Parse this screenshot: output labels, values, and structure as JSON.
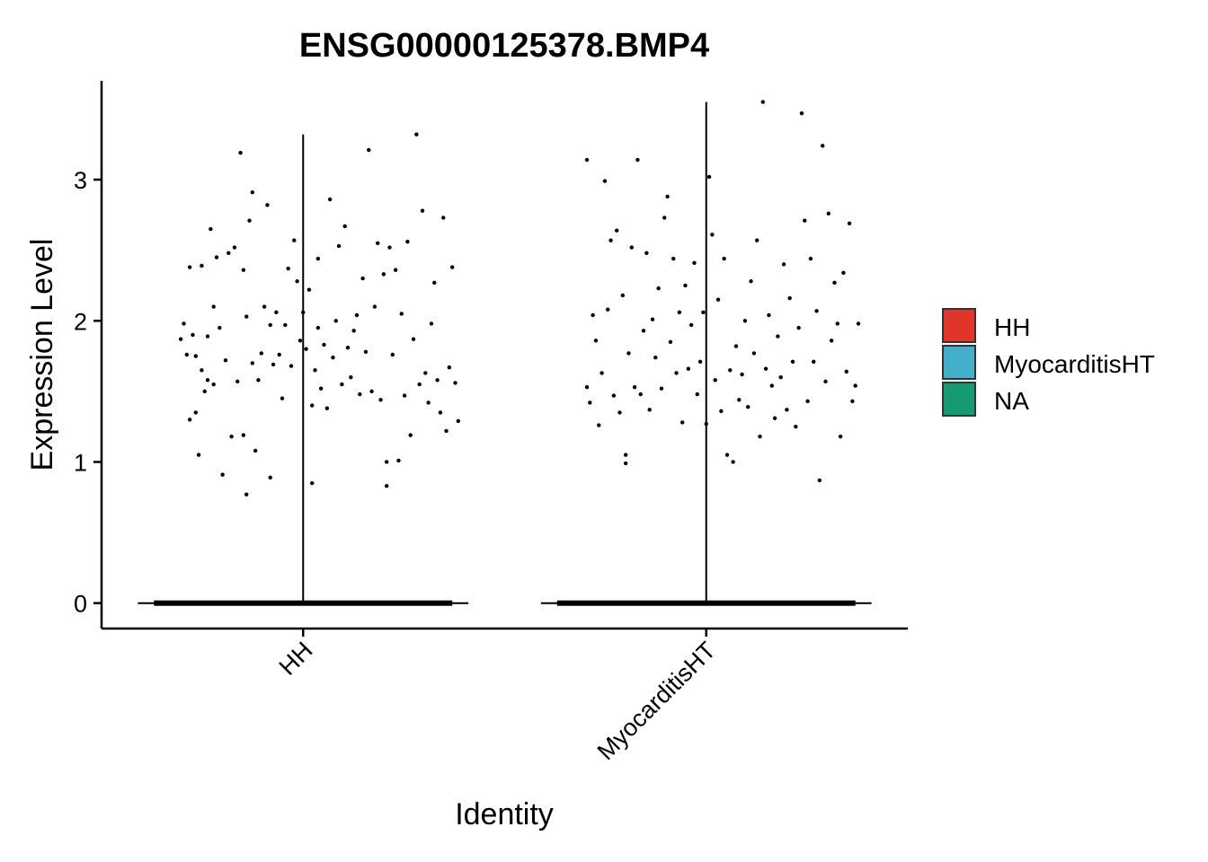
{
  "chart_data": {
    "type": "violin",
    "title": "ENSG00000125378.BMP4",
    "xlabel": "Identity",
    "ylabel": "Expression Level",
    "categories": [
      "HH",
      "MyocarditisHT"
    ],
    "ylim": [
      -0.18,
      3.7
    ],
    "yticks": [
      0,
      1,
      2,
      3
    ],
    "grid": false,
    "legend_position": "right",
    "legend": [
      {
        "label": "HH",
        "color": "#E0352B"
      },
      {
        "label": "MyocarditisHT",
        "color": "#44AECB"
      },
      {
        "label": "NA",
        "color": "#159A72"
      }
    ],
    "violins": [
      {
        "category": "HH",
        "max": 3.32,
        "zero_fraction_dominant": true
      },
      {
        "category": "MyocarditisHT",
        "max": 3.55,
        "zero_fraction_dominant": true
      }
    ],
    "points": {
      "HH": [
        {
          "x": -0.41,
          "y": 1.87
        },
        {
          "x": -0.4,
          "y": 1.98
        },
        {
          "x": -0.39,
          "y": 1.76
        },
        {
          "x": -0.38,
          "y": 1.3
        },
        {
          "x": -0.38,
          "y": 2.38
        },
        {
          "x": -0.37,
          "y": 1.9
        },
        {
          "x": -0.36,
          "y": 1.75
        },
        {
          "x": -0.36,
          "y": 1.35
        },
        {
          "x": -0.35,
          "y": 1.05
        },
        {
          "x": -0.34,
          "y": 2.39
        },
        {
          "x": -0.34,
          "y": 1.65
        },
        {
          "x": -0.33,
          "y": 1.5
        },
        {
          "x": -0.32,
          "y": 1.89
        },
        {
          "x": -0.32,
          "y": 1.58
        },
        {
          "x": -0.31,
          "y": 2.65
        },
        {
          "x": -0.3,
          "y": 2.1
        },
        {
          "x": -0.3,
          "y": 1.55
        },
        {
          "x": -0.29,
          "y": 2.45
        },
        {
          "x": -0.28,
          "y": 1.95
        },
        {
          "x": -0.27,
          "y": 0.91
        },
        {
          "x": -0.26,
          "y": 1.72
        },
        {
          "x": -0.25,
          "y": 2.48
        },
        {
          "x": -0.24,
          "y": 1.18
        },
        {
          "x": -0.23,
          "y": 2.52
        },
        {
          "x": -0.22,
          "y": 1.57
        },
        {
          "x": -0.21,
          "y": 3.19
        },
        {
          "x": -0.2,
          "y": 2.36
        },
        {
          "x": -0.2,
          "y": 1.19
        },
        {
          "x": -0.19,
          "y": 0.77
        },
        {
          "x": -0.19,
          "y": 2.03
        },
        {
          "x": -0.18,
          "y": 2.71
        },
        {
          "x": -0.17,
          "y": 2.91
        },
        {
          "x": -0.17,
          "y": 1.7
        },
        {
          "x": -0.16,
          "y": 1.08
        },
        {
          "x": -0.15,
          "y": 1.58
        },
        {
          "x": -0.14,
          "y": 1.77
        },
        {
          "x": -0.13,
          "y": 2.1
        },
        {
          "x": -0.12,
          "y": 2.82
        },
        {
          "x": -0.11,
          "y": 0.89
        },
        {
          "x": -0.11,
          "y": 1.97
        },
        {
          "x": -0.1,
          "y": 1.69
        },
        {
          "x": -0.09,
          "y": 2.06
        },
        {
          "x": -0.08,
          "y": 1.76
        },
        {
          "x": -0.07,
          "y": 1.45
        },
        {
          "x": -0.06,
          "y": 1.97
        },
        {
          "x": -0.05,
          "y": 2.37
        },
        {
          "x": -0.04,
          "y": 1.68
        },
        {
          "x": -0.03,
          "y": 2.57
        },
        {
          "x": -0.02,
          "y": 2.28
        },
        {
          "x": -0.01,
          "y": 1.86
        },
        {
          "x": 0.0,
          "y": 2.06
        },
        {
          "x": 0.01,
          "y": 1.8
        },
        {
          "x": 0.02,
          "y": 2.22
        },
        {
          "x": 0.03,
          "y": 1.4
        },
        {
          "x": 0.03,
          "y": 0.85
        },
        {
          "x": 0.04,
          "y": 1.65
        },
        {
          "x": 0.05,
          "y": 2.44
        },
        {
          "x": 0.05,
          "y": 1.95
        },
        {
          "x": 0.06,
          "y": 1.52
        },
        {
          "x": 0.07,
          "y": 1.83
        },
        {
          "x": 0.08,
          "y": 1.38
        },
        {
          "x": 0.09,
          "y": 2.86
        },
        {
          "x": 0.1,
          "y": 1.74
        },
        {
          "x": 0.11,
          "y": 2.0
        },
        {
          "x": 0.12,
          "y": 2.53
        },
        {
          "x": 0.13,
          "y": 1.55
        },
        {
          "x": 0.14,
          "y": 2.67
        },
        {
          "x": 0.15,
          "y": 1.81
        },
        {
          "x": 0.16,
          "y": 1.6
        },
        {
          "x": 0.17,
          "y": 1.93
        },
        {
          "x": 0.18,
          "y": 2.04
        },
        {
          "x": 0.19,
          "y": 1.48
        },
        {
          "x": 0.2,
          "y": 2.3
        },
        {
          "x": 0.21,
          "y": 1.78
        },
        {
          "x": 0.22,
          "y": 3.21
        },
        {
          "x": 0.23,
          "y": 1.5
        },
        {
          "x": 0.24,
          "y": 2.1
        },
        {
          "x": 0.25,
          "y": 2.55
        },
        {
          "x": 0.26,
          "y": 1.44
        },
        {
          "x": 0.27,
          "y": 2.33
        },
        {
          "x": 0.28,
          "y": 1.0
        },
        {
          "x": 0.28,
          "y": 0.83
        },
        {
          "x": 0.29,
          "y": 2.52
        },
        {
          "x": 0.3,
          "y": 1.76
        },
        {
          "x": 0.31,
          "y": 2.36
        },
        {
          "x": 0.32,
          "y": 1.01
        },
        {
          "x": 0.33,
          "y": 2.05
        },
        {
          "x": 0.34,
          "y": 1.47
        },
        {
          "x": 0.35,
          "y": 2.56
        },
        {
          "x": 0.36,
          "y": 1.19
        },
        {
          "x": 0.37,
          "y": 1.87
        },
        {
          "x": 0.38,
          "y": 3.32
        },
        {
          "x": 0.39,
          "y": 1.55
        },
        {
          "x": 0.4,
          "y": 2.78
        },
        {
          "x": 0.41,
          "y": 1.63
        },
        {
          "x": 0.42,
          "y": 1.42
        },
        {
          "x": 0.43,
          "y": 1.98
        },
        {
          "x": 0.44,
          "y": 2.27
        },
        {
          "x": 0.45,
          "y": 1.58
        },
        {
          "x": 0.46,
          "y": 1.35
        },
        {
          "x": 0.47,
          "y": 2.73
        },
        {
          "x": 0.48,
          "y": 1.22
        },
        {
          "x": 0.49,
          "y": 1.67
        },
        {
          "x": 0.5,
          "y": 2.38
        },
        {
          "x": 0.51,
          "y": 1.56
        },
        {
          "x": 0.52,
          "y": 1.29
        }
      ],
      "MyocarditisHT": [
        {
          "x": -0.4,
          "y": 1.53
        },
        {
          "x": -0.4,
          "y": 3.14
        },
        {
          "x": -0.39,
          "y": 1.42
        },
        {
          "x": -0.38,
          "y": 2.04
        },
        {
          "x": -0.37,
          "y": 1.86
        },
        {
          "x": -0.36,
          "y": 1.26
        },
        {
          "x": -0.35,
          "y": 1.63
        },
        {
          "x": -0.34,
          "y": 2.99
        },
        {
          "x": -0.33,
          "y": 2.08
        },
        {
          "x": -0.32,
          "y": 2.57
        },
        {
          "x": -0.31,
          "y": 1.47
        },
        {
          "x": -0.3,
          "y": 2.64
        },
        {
          "x": -0.29,
          "y": 1.35
        },
        {
          "x": -0.28,
          "y": 2.18
        },
        {
          "x": -0.27,
          "y": 1.05
        },
        {
          "x": -0.27,
          "y": 0.99
        },
        {
          "x": -0.26,
          "y": 1.77
        },
        {
          "x": -0.25,
          "y": 2.52
        },
        {
          "x": -0.24,
          "y": 1.53
        },
        {
          "x": -0.23,
          "y": 3.14
        },
        {
          "x": -0.22,
          "y": 1.48
        },
        {
          "x": -0.21,
          "y": 1.93
        },
        {
          "x": -0.2,
          "y": 2.48
        },
        {
          "x": -0.19,
          "y": 1.37
        },
        {
          "x": -0.18,
          "y": 2.01
        },
        {
          "x": -0.17,
          "y": 1.74
        },
        {
          "x": -0.16,
          "y": 2.23
        },
        {
          "x": -0.15,
          "y": 1.52
        },
        {
          "x": -0.14,
          "y": 2.73
        },
        {
          "x": -0.13,
          "y": 2.88
        },
        {
          "x": -0.12,
          "y": 1.85
        },
        {
          "x": -0.11,
          "y": 2.44
        },
        {
          "x": -0.1,
          "y": 1.63
        },
        {
          "x": -0.09,
          "y": 2.06
        },
        {
          "x": -0.08,
          "y": 1.28
        },
        {
          "x": -0.07,
          "y": 2.25
        },
        {
          "x": -0.06,
          "y": 1.66
        },
        {
          "x": -0.05,
          "y": 1.97
        },
        {
          "x": -0.04,
          "y": 2.41
        },
        {
          "x": -0.03,
          "y": 1.48
        },
        {
          "x": -0.02,
          "y": 1.71
        },
        {
          "x": -0.01,
          "y": 2.06
        },
        {
          "x": 0.0,
          "y": 1.27
        },
        {
          "x": 0.01,
          "y": 3.02
        },
        {
          "x": 0.02,
          "y": 2.61
        },
        {
          "x": 0.03,
          "y": 1.58
        },
        {
          "x": 0.04,
          "y": 2.15
        },
        {
          "x": 0.05,
          "y": 1.36
        },
        {
          "x": 0.06,
          "y": 2.44
        },
        {
          "x": 0.07,
          "y": 1.05
        },
        {
          "x": 0.08,
          "y": 1.65
        },
        {
          "x": 0.09,
          "y": 1.0
        },
        {
          "x": 0.1,
          "y": 1.82
        },
        {
          "x": 0.11,
          "y": 1.44
        },
        {
          "x": 0.12,
          "y": 1.62
        },
        {
          "x": 0.13,
          "y": 2.0
        },
        {
          "x": 0.14,
          "y": 1.39
        },
        {
          "x": 0.15,
          "y": 2.28
        },
        {
          "x": 0.16,
          "y": 1.77
        },
        {
          "x": 0.17,
          "y": 2.57
        },
        {
          "x": 0.18,
          "y": 1.18
        },
        {
          "x": 0.19,
          "y": 3.55
        },
        {
          "x": 0.2,
          "y": 1.66
        },
        {
          "x": 0.21,
          "y": 2.04
        },
        {
          "x": 0.22,
          "y": 1.54
        },
        {
          "x": 0.23,
          "y": 1.31
        },
        {
          "x": 0.24,
          "y": 1.89
        },
        {
          "x": 0.25,
          "y": 1.6
        },
        {
          "x": 0.26,
          "y": 2.4
        },
        {
          "x": 0.27,
          "y": 1.37
        },
        {
          "x": 0.28,
          "y": 2.16
        },
        {
          "x": 0.29,
          "y": 1.71
        },
        {
          "x": 0.3,
          "y": 1.25
        },
        {
          "x": 0.31,
          "y": 1.95
        },
        {
          "x": 0.32,
          "y": 3.47
        },
        {
          "x": 0.33,
          "y": 2.71
        },
        {
          "x": 0.34,
          "y": 1.43
        },
        {
          "x": 0.35,
          "y": 2.44
        },
        {
          "x": 0.36,
          "y": 1.71
        },
        {
          "x": 0.37,
          "y": 2.07
        },
        {
          "x": 0.38,
          "y": 0.87
        },
        {
          "x": 0.39,
          "y": 3.24
        },
        {
          "x": 0.4,
          "y": 1.57
        },
        {
          "x": 0.41,
          "y": 2.76
        },
        {
          "x": 0.42,
          "y": 1.86
        },
        {
          "x": 0.43,
          "y": 2.27
        },
        {
          "x": 0.44,
          "y": 1.98
        },
        {
          "x": 0.45,
          "y": 1.18
        },
        {
          "x": 0.46,
          "y": 2.34
        },
        {
          "x": 0.47,
          "y": 1.64
        },
        {
          "x": 0.48,
          "y": 2.69
        },
        {
          "x": 0.49,
          "y": 1.43
        },
        {
          "x": 0.5,
          "y": 1.54
        },
        {
          "x": 0.51,
          "y": 1.98
        }
      ]
    }
  }
}
